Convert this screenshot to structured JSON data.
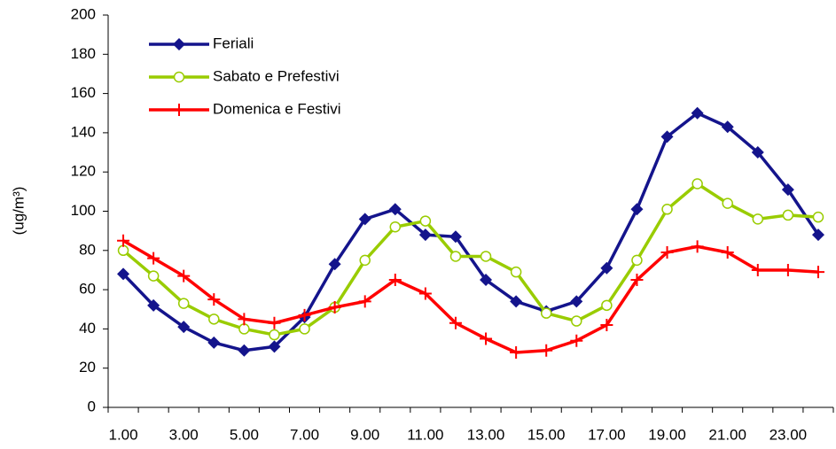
{
  "chart_data": {
    "type": "line",
    "y_label": "(ug/m³)",
    "categories": [
      "1.00",
      null,
      "3.00",
      null,
      "5.00",
      null,
      "7.00",
      null,
      "9.00",
      null,
      "11.00",
      null,
      "13.00",
      null,
      "15.00",
      null,
      "17.00",
      null,
      "19.00",
      null,
      "21.00",
      null,
      "23.00",
      null
    ],
    "series": [
      {
        "name": "Feriali",
        "color": "#14148c",
        "marker": "diamond",
        "values": [
          68,
          52,
          41,
          33,
          29,
          31,
          46,
          73,
          96,
          101,
          88,
          87,
          65,
          54,
          49,
          54,
          71,
          101,
          138,
          150,
          143,
          130,
          111,
          88
        ]
      },
      {
        "name": "Sabato e Prefestivi",
        "color": "#99cc00",
        "marker": "open-circle",
        "values": [
          80,
          67,
          53,
          45,
          40,
          37,
          40,
          51,
          75,
          92,
          95,
          77,
          77,
          69,
          48,
          44,
          52,
          75,
          101,
          114,
          104,
          96,
          98,
          97
        ]
      },
      {
        "name": "Domenica e Festivi",
        "color": "#ff0000",
        "marker": "plus",
        "values": [
          85,
          76,
          67,
          55,
          45,
          43,
          47,
          51,
          54,
          65,
          58,
          43,
          35,
          28,
          29,
          34,
          42,
          65,
          79,
          82,
          79,
          70,
          70,
          69
        ]
      }
    ],
    "ylim": [
      0,
      200
    ],
    "yticks": [
      0,
      20,
      40,
      60,
      80,
      100,
      120,
      140,
      160,
      180,
      200
    ],
    "grid": false,
    "legend": "upper left"
  }
}
